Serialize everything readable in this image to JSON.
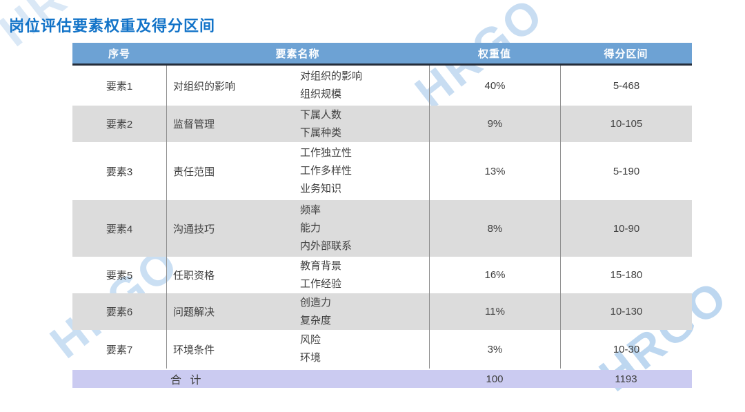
{
  "title": "岗位评估要素权重及得分区间",
  "watermark": {
    "text": "HRGO"
  },
  "colors": {
    "title_color": "#1273c8",
    "header_bg": "#6da2d4",
    "header_text": "#ffffff",
    "header_border": "#252d3a",
    "row_shade": "#dcdcdc",
    "footer_bg": "#cbcbf1",
    "body_text": "#3f3f3f",
    "divider": "#8e8e8e",
    "watermark": "#7db0e2"
  },
  "table": {
    "headers": [
      "序号",
      "要素名称",
      "权重值",
      "得分区间"
    ],
    "rows": [
      {
        "index": "要素1",
        "name": "对组织的影响",
        "subs": [
          "对组织的影响",
          "组织规模"
        ],
        "weight": "40%",
        "range": "5-468"
      },
      {
        "index": "要素2",
        "name": "监督管理",
        "subs": [
          "下属人数",
          "下属种类"
        ],
        "weight": "9%",
        "range": "10-105"
      },
      {
        "index": "要素3",
        "name": "责任范围",
        "subs": [
          "工作独立性",
          "工作多样性",
          "业务知识"
        ],
        "weight": "13%",
        "range": "5-190"
      },
      {
        "index": "要素4",
        "name": "沟通技巧",
        "subs": [
          "频率",
          "能力",
          "内外部联系"
        ],
        "weight": "8%",
        "range": "10-90"
      },
      {
        "index": "要素5",
        "name": "任职资格",
        "subs": [
          "教育背景",
          "工作经验"
        ],
        "weight": "16%",
        "range": "15-180"
      },
      {
        "index": "要素6",
        "name": "问题解决",
        "subs": [
          "创造力",
          "复杂度"
        ],
        "weight": "11%",
        "range": "10-130"
      },
      {
        "index": "要素7",
        "name": "环境条件",
        "subs": [
          "风险",
          "环境"
        ],
        "weight": "3%",
        "range": "10-30"
      }
    ],
    "footer": {
      "label": "合 计",
      "weight_total": "100",
      "range_total": "1193"
    }
  }
}
